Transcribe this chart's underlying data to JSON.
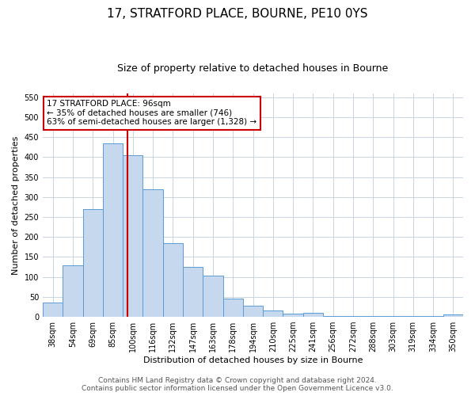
{
  "title": "17, STRATFORD PLACE, BOURNE, PE10 0YS",
  "subtitle": "Size of property relative to detached houses in Bourne",
  "xlabel": "Distribution of detached houses by size in Bourne",
  "ylabel": "Number of detached properties",
  "categories": [
    "38sqm",
    "54sqm",
    "69sqm",
    "85sqm",
    "100sqm",
    "116sqm",
    "132sqm",
    "147sqm",
    "163sqm",
    "178sqm",
    "194sqm",
    "210sqm",
    "225sqm",
    "241sqm",
    "256sqm",
    "272sqm",
    "288sqm",
    "303sqm",
    "319sqm",
    "334sqm",
    "350sqm"
  ],
  "values": [
    35,
    130,
    270,
    435,
    405,
    320,
    185,
    125,
    103,
    45,
    28,
    17,
    8,
    10,
    3,
    3,
    3,
    3,
    3,
    3,
    6
  ],
  "bar_color": "#c5d8ed",
  "bar_edge_color": "#5b9bd5",
  "property_line_color": "#cc0000",
  "annotation_text": "17 STRATFORD PLACE: 96sqm\n← 35% of detached houses are smaller (746)\n63% of semi-detached houses are larger (1,328) →",
  "annotation_box_color": "#ffffff",
  "annotation_box_edge": "#cc0000",
  "ylim": [
    0,
    560
  ],
  "yticks": [
    0,
    50,
    100,
    150,
    200,
    250,
    300,
    350,
    400,
    450,
    500,
    550
  ],
  "footer_line1": "Contains HM Land Registry data © Crown copyright and database right 2024.",
  "footer_line2": "Contains public sector information licensed under the Open Government Licence v3.0.",
  "bg_color": "#ffffff",
  "grid_color": "#c8d4e3",
  "title_fontsize": 11,
  "subtitle_fontsize": 9,
  "axis_label_fontsize": 8,
  "tick_fontsize": 7,
  "annotation_fontsize": 7.5,
  "footer_fontsize": 6.5
}
